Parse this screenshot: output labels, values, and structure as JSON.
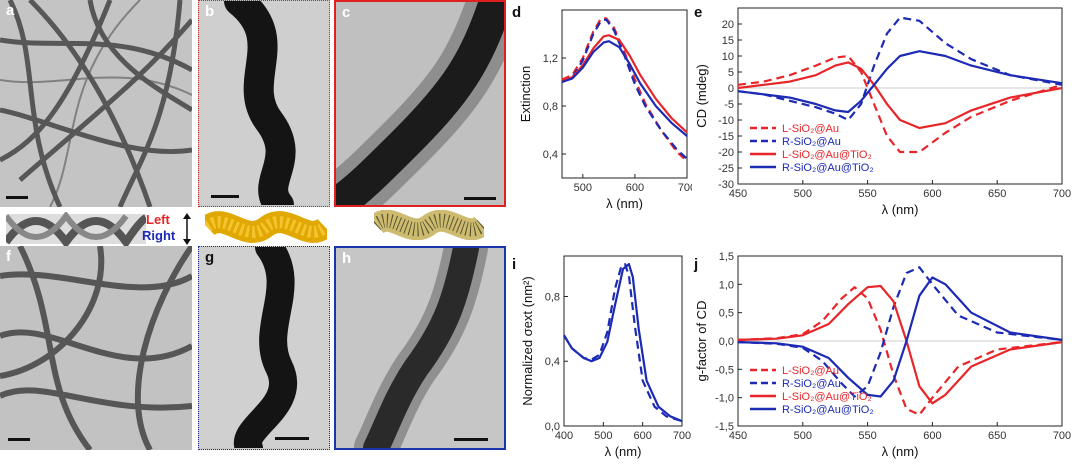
{
  "panel_labels": {
    "a": "a",
    "b": "b",
    "c": "c",
    "d": "d",
    "e": "e",
    "f": "f",
    "g": "g",
    "h": "h",
    "i": "i",
    "j": "j"
  },
  "helix_legend": {
    "left": "Left",
    "right": "Right",
    "left_color": "#e8262a",
    "right_color": "#1c2ab4"
  },
  "colors": {
    "red": "#e8262a",
    "blue": "#1c2ab4",
    "frame_red": "#e02020",
    "frame_blue": "#1a35a8"
  },
  "chart_data": [
    {
      "id": "d",
      "type": "line",
      "xlabel": "λ (nm)",
      "ylabel": "Extinction",
      "xlim": [
        460,
        700
      ],
      "ylim": [
        0.2,
        1.6
      ],
      "xticks": [
        500,
        600,
        700
      ],
      "yticks": [
        0.4,
        0.8,
        1.2
      ],
      "ytick_labels": [
        "0,4",
        "0,8",
        "1,2"
      ],
      "series": [
        {
          "color": "#e8262a",
          "style": "dashed",
          "x": [
            460,
            480,
            500,
            520,
            535,
            545,
            560,
            580,
            600,
            620,
            650,
            680,
            700
          ],
          "y": [
            1.02,
            1.06,
            1.2,
            1.42,
            1.53,
            1.53,
            1.45,
            1.25,
            1.02,
            0.82,
            0.6,
            0.42,
            0.34
          ]
        },
        {
          "color": "#1c2ab4",
          "style": "dashed",
          "x": [
            460,
            480,
            500,
            520,
            535,
            545,
            560,
            580,
            600,
            620,
            650,
            680,
            700
          ],
          "y": [
            1.0,
            1.04,
            1.18,
            1.4,
            1.51,
            1.52,
            1.43,
            1.22,
            0.98,
            0.8,
            0.6,
            0.44,
            0.36
          ]
        },
        {
          "color": "#e8262a",
          "style": "solid",
          "x": [
            460,
            480,
            500,
            520,
            540,
            550,
            570,
            590,
            610,
            640,
            670,
            700
          ],
          "y": [
            1.01,
            1.04,
            1.14,
            1.28,
            1.38,
            1.39,
            1.35,
            1.22,
            1.06,
            0.86,
            0.7,
            0.58
          ]
        },
        {
          "color": "#1c2ab4",
          "style": "solid",
          "x": [
            460,
            480,
            500,
            520,
            540,
            550,
            570,
            590,
            610,
            640,
            670,
            700
          ],
          "y": [
            1.0,
            1.03,
            1.12,
            1.25,
            1.33,
            1.34,
            1.29,
            1.15,
            0.99,
            0.8,
            0.66,
            0.55
          ]
        }
      ]
    },
    {
      "id": "e",
      "type": "line",
      "xlabel": "λ (nm)",
      "ylabel": "CD (mdeg)",
      "xlim": [
        450,
        700
      ],
      "ylim": [
        -30,
        25
      ],
      "xticks": [
        450,
        500,
        550,
        600,
        650,
        700
      ],
      "yticks": [
        -30,
        -25,
        -20,
        -15,
        -10,
        -5,
        0,
        5,
        10,
        15,
        20
      ],
      "legend": {
        "position": "bottom-left",
        "entries": [
          {
            "color": "#e8262a",
            "style": "dashed",
            "label": "L-SiO₂@Au"
          },
          {
            "color": "#1c2ab4",
            "style": "dashed",
            "label": "R-SiO₂@Au"
          },
          {
            "color": "#e8262a",
            "style": "solid",
            "label": "L-SiO₂@Au@TiO₂"
          },
          {
            "color": "#1c2ab4",
            "style": "solid",
            "label": "R-SiO₂@Au@TiO₂"
          }
        ]
      },
      "series": [
        {
          "color": "#e8262a",
          "style": "dashed",
          "x": [
            450,
            470,
            490,
            510,
            525,
            535,
            545,
            555,
            565,
            575,
            590,
            610,
            630,
            660,
            700
          ],
          "y": [
            1,
            2,
            4,
            7,
            9.5,
            10,
            5,
            -5,
            -15,
            -20,
            -20,
            -14,
            -9,
            -4,
            1
          ]
        },
        {
          "color": "#1c2ab4",
          "style": "dashed",
          "x": [
            450,
            470,
            490,
            510,
            525,
            535,
            545,
            555,
            565,
            575,
            590,
            610,
            630,
            660,
            700
          ],
          "y": [
            -1,
            -2,
            -4,
            -6,
            -8,
            -10,
            -5,
            7,
            17,
            22,
            21,
            14,
            9,
            4,
            1
          ]
        },
        {
          "color": "#e8262a",
          "style": "solid",
          "x": [
            450,
            470,
            490,
            510,
            525,
            535,
            545,
            555,
            565,
            575,
            590,
            610,
            630,
            660,
            700
          ],
          "y": [
            0,
            1,
            2,
            4,
            7,
            8,
            6,
            1,
            -5,
            -10,
            -12.5,
            -11,
            -7,
            -3,
            0
          ]
        },
        {
          "color": "#1c2ab4",
          "style": "solid",
          "x": [
            450,
            470,
            490,
            510,
            525,
            535,
            545,
            555,
            565,
            575,
            590,
            610,
            630,
            660,
            700
          ],
          "y": [
            -1,
            -2,
            -3,
            -5,
            -7,
            -7.5,
            -4,
            1,
            6,
            10,
            11.5,
            10,
            7,
            4,
            1.5
          ]
        }
      ]
    },
    {
      "id": "i",
      "type": "line",
      "xlabel": "λ (nm)",
      "ylabel": "Normalized σext (nm²)",
      "xlim": [
        400,
        700
      ],
      "ylim": [
        0,
        1.05
      ],
      "xticks": [
        400,
        500,
        600,
        700
      ],
      "yticks": [
        0,
        0.4,
        0.8
      ],
      "ytick_labels": [
        "0,0",
        "0,4",
        "0,8"
      ],
      "series": [
        {
          "color": "#1c2ab4",
          "style": "solid",
          "x": [
            400,
            420,
            450,
            470,
            490,
            510,
            530,
            550,
            565,
            575,
            590,
            610,
            640,
            670,
            700
          ],
          "y": [
            0.56,
            0.48,
            0.42,
            0.4,
            0.42,
            0.52,
            0.75,
            0.97,
            1.0,
            0.92,
            0.6,
            0.28,
            0.12,
            0.06,
            0.03
          ]
        },
        {
          "color": "#1c2ab4",
          "style": "dashed",
          "x": [
            400,
            420,
            450,
            470,
            490,
            510,
            530,
            545,
            555,
            565,
            580,
            600,
            630,
            660,
            700
          ],
          "y": [
            0.56,
            0.48,
            0.42,
            0.41,
            0.44,
            0.58,
            0.85,
            0.98,
            1.0,
            0.93,
            0.62,
            0.28,
            0.12,
            0.06,
            0.03
          ]
        }
      ]
    },
    {
      "id": "j",
      "type": "line",
      "xlabel": "λ (nm)",
      "ylabel": "g-factor of CD",
      "xlim": [
        450,
        700
      ],
      "ylim": [
        -1.5,
        1.5
      ],
      "xticks": [
        450,
        500,
        550,
        600,
        650,
        700
      ],
      "yticks": [
        -1.5,
        -1.0,
        -0.5,
        0.0,
        0.5,
        1.0,
        1.5
      ],
      "ytick_labels": [
        "-1,5",
        "-1,0",
        "-0,5",
        "0,0",
        "0,5",
        "1,0",
        "1,5"
      ],
      "legend": {
        "position": "bottom-left",
        "entries": [
          {
            "color": "#e8262a",
            "style": "dashed",
            "label": "L-SiO₂@Au"
          },
          {
            "color": "#1c2ab4",
            "style": "dashed",
            "label": "R-SiO₂@Au"
          },
          {
            "color": "#e8262a",
            "style": "solid",
            "label": "L-SiO₂@Au@TiO₂"
          },
          {
            "color": "#1c2ab4",
            "style": "solid",
            "label": "R-SiO₂@Au@TiO₂"
          }
        ]
      },
      "series": [
        {
          "color": "#e8262a",
          "style": "dashed",
          "x": [
            450,
            480,
            500,
            515,
            530,
            540,
            550,
            560,
            570,
            580,
            590,
            600,
            620,
            650,
            700
          ],
          "y": [
            0.02,
            0.05,
            0.12,
            0.35,
            0.75,
            0.95,
            0.75,
            0.2,
            -0.6,
            -1.2,
            -1.3,
            -1.0,
            -0.45,
            -0.15,
            -0.02
          ]
        },
        {
          "color": "#1c2ab4",
          "style": "dashed",
          "x": [
            450,
            480,
            500,
            515,
            530,
            540,
            550,
            560,
            570,
            580,
            590,
            600,
            620,
            650,
            700
          ],
          "y": [
            -0.02,
            -0.05,
            -0.12,
            -0.35,
            -0.75,
            -0.98,
            -0.8,
            -0.2,
            0.6,
            1.2,
            1.3,
            1.0,
            0.45,
            0.15,
            0.02
          ]
        },
        {
          "color": "#e8262a",
          "style": "solid",
          "x": [
            450,
            480,
            500,
            520,
            535,
            550,
            560,
            570,
            580,
            590,
            600,
            610,
            630,
            660,
            700
          ],
          "y": [
            0.02,
            0.04,
            0.1,
            0.3,
            0.65,
            0.95,
            0.97,
            0.7,
            0.0,
            -0.8,
            -1.1,
            -0.95,
            -0.45,
            -0.15,
            -0.02
          ]
        },
        {
          "color": "#1c2ab4",
          "style": "solid",
          "x": [
            450,
            480,
            500,
            520,
            535,
            550,
            560,
            570,
            580,
            590,
            600,
            610,
            630,
            660,
            700
          ],
          "y": [
            -0.02,
            -0.04,
            -0.1,
            -0.3,
            -0.65,
            -0.95,
            -0.98,
            -0.7,
            0.0,
            0.8,
            1.12,
            1.0,
            0.5,
            0.15,
            0.02
          ]
        }
      ]
    }
  ]
}
